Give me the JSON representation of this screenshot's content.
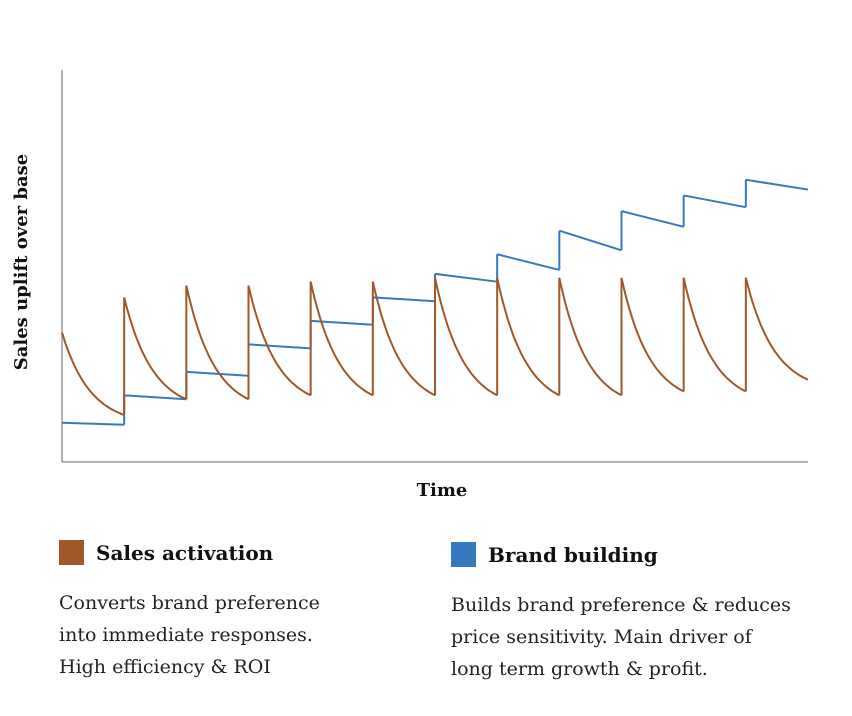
{
  "chart_data": {
    "type": "line",
    "xlabel": "Time",
    "ylabel": "Sales uplift over base",
    "xlim": [
      0,
      12
    ],
    "ylim": [
      0,
      100
    ],
    "grid": false,
    "series": [
      {
        "name": "Sales activation",
        "color": "#A0582A",
        "description": [
          "Converts brand preference",
          "into immediate responses.",
          "High efficiency & ROI"
        ],
        "pulses": [
          {
            "start": 0,
            "peak": 33,
            "end": 12
          },
          {
            "start": 1,
            "peak": 42,
            "end": 16
          },
          {
            "start": 2,
            "peak": 45,
            "end": 16
          },
          {
            "start": 3,
            "peak": 45,
            "end": 17
          },
          {
            "start": 4,
            "peak": 46,
            "end": 17
          },
          {
            "start": 5,
            "peak": 46,
            "end": 17
          },
          {
            "start": 6,
            "peak": 47,
            "end": 17
          },
          {
            "start": 7,
            "peak": 47,
            "end": 17
          },
          {
            "start": 8,
            "peak": 47,
            "end": 17
          },
          {
            "start": 9,
            "peak": 47,
            "end": 18
          },
          {
            "start": 10,
            "peak": 47,
            "end": 18
          },
          {
            "start": 11,
            "peak": 47,
            "end": 21
          }
        ]
      },
      {
        "name": "Brand building",
        "color": "#3779BE",
        "description": [
          "Builds brand preference & reduces",
          "price sensitivity. Main driver of",
          "long term growth & profit."
        ],
        "steps": [
          {
            "start": 0,
            "begin": 10,
            "end": 9.5
          },
          {
            "start": 1,
            "begin": 17,
            "end": 16
          },
          {
            "start": 2,
            "begin": 23,
            "end": 22
          },
          {
            "start": 3,
            "begin": 30,
            "end": 29
          },
          {
            "start": 4,
            "begin": 36,
            "end": 35
          },
          {
            "start": 5,
            "begin": 42,
            "end": 41
          },
          {
            "start": 6,
            "begin": 48,
            "end": 46
          },
          {
            "start": 7,
            "begin": 53,
            "end": 49
          },
          {
            "start": 8,
            "begin": 59,
            "end": 54
          },
          {
            "start": 9,
            "begin": 64,
            "end": 60
          },
          {
            "start": 10,
            "begin": 68,
            "end": 65
          },
          {
            "start": 11,
            "begin": 72,
            "end": 69.5
          }
        ]
      }
    ]
  }
}
